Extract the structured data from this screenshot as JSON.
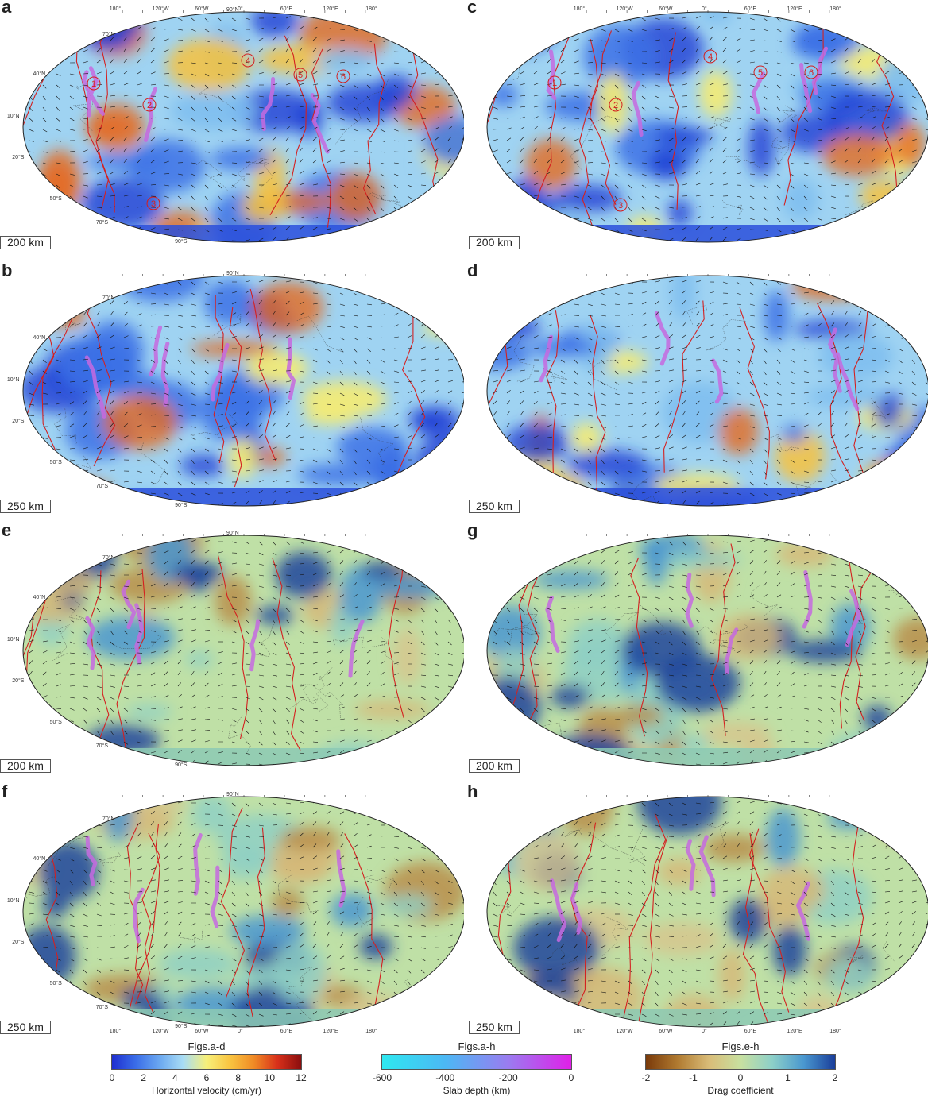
{
  "panels": [
    {
      "id": "a",
      "depth": "200 km",
      "palette": "velocity",
      "col": 0,
      "row": 0
    },
    {
      "id": "b",
      "depth": "250 km",
      "palette": "velocity",
      "col": 0,
      "row": 1
    },
    {
      "id": "c",
      "depth": "200 km",
      "palette": "velocity",
      "col": 1,
      "row": 0
    },
    {
      "id": "d",
      "depth": "250 km",
      "palette": "velocity",
      "col": 1,
      "row": 1
    },
    {
      "id": "e",
      "depth": "200 km",
      "palette": "drag",
      "col": 0,
      "row": 2
    },
    {
      "id": "f",
      "depth": "250 km",
      "palette": "drag",
      "col": 0,
      "row": 3
    },
    {
      "id": "g",
      "depth": "200 km",
      "palette": "drag",
      "col": 1,
      "row": 2
    },
    {
      "id": "h",
      "depth": "250 km",
      "palette": "drag",
      "col": 1,
      "row": 3
    }
  ],
  "lon_ticks_left": [
    "180°",
    "120°W",
    "60°W",
    "0°",
    "60°E",
    "120°E",
    "180°"
  ],
  "lon_ticks_right": [
    "180°",
    "120°W",
    "60°W",
    "0°",
    "60°E",
    "120°E",
    "180°"
  ],
  "lat_ticks": [
    "90°N",
    "70°N",
    "40°N",
    "10°N",
    "20°S",
    "50°S",
    "70°S",
    "90°S"
  ],
  "markers_a": [
    "1",
    "2",
    "3",
    "4",
    "5",
    "6"
  ],
  "markers_c": [
    "1",
    "2",
    "3",
    "4",
    "5",
    "6"
  ],
  "colorbars": [
    {
      "title": "Figs.a-d",
      "label": "Horizontal velocity (cm/yr)",
      "ticks": [
        "0",
        "2",
        "4",
        "6",
        "8",
        "10",
        "12"
      ],
      "colors": [
        "#1f2fd0",
        "#3a6de8",
        "#6aa7f0",
        "#a8dcf5",
        "#f7f07a",
        "#f9c440",
        "#f08a25",
        "#d8301a",
        "#8a0e0e"
      ]
    },
    {
      "title": "Figs.a-h",
      "label": "Slab depth (km)",
      "ticks": [
        "-600",
        "-400",
        "-200",
        "0"
      ],
      "colors": [
        "#2ee8f0",
        "#4cb8f4",
        "#9a7cf0",
        "#e020e8"
      ]
    },
    {
      "title": "Figs.e-h",
      "label": "Drag coefficient",
      "ticks": [
        "-2",
        "-1",
        "0",
        "1",
        "2"
      ],
      "colors": [
        "#7a3a0a",
        "#b07a30",
        "#d9bc78",
        "#c8e0a0",
        "#8dd0c8",
        "#4a98d0",
        "#1a3e9a"
      ]
    }
  ]
}
